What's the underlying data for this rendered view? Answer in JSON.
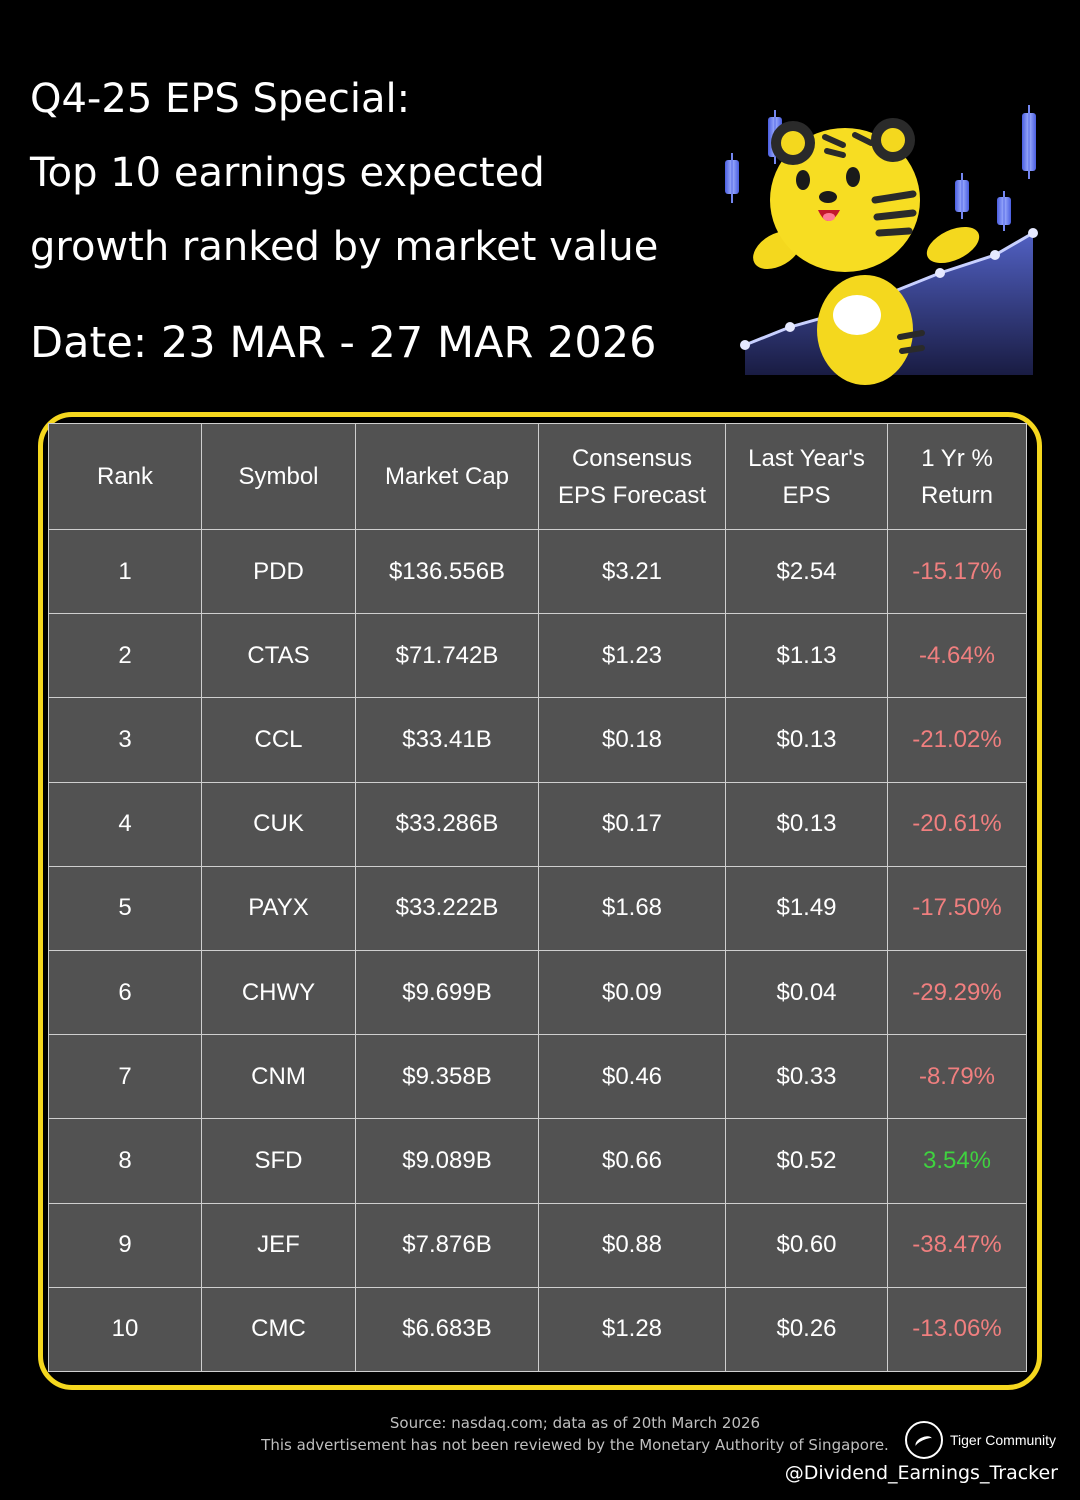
{
  "header": {
    "title_lines": [
      "Q4-25 EPS Special:",
      "Top 10 earnings expected",
      "growth ranked by market value"
    ],
    "date": "Date: 23 MAR - 27 MAR 2026"
  },
  "mascot": {
    "icon": "tiger-mascot-icon"
  },
  "table": {
    "headers": [
      "Rank",
      "Symbol",
      "Market Cap",
      "Consensus EPS Forecast",
      "Last Year's EPS",
      "1 Yr % Return"
    ],
    "rows": [
      {
        "rank": "1",
        "symbol": "PDD",
        "market_cap": "$136.556B",
        "forecast": "$3.21",
        "last_eps": "$2.54",
        "ret": "-15.17%"
      },
      {
        "rank": "2",
        "symbol": "CTAS",
        "market_cap": "$71.742B",
        "forecast": "$1.23",
        "last_eps": "$1.13",
        "ret": "-4.64%"
      },
      {
        "rank": "3",
        "symbol": "CCL",
        "market_cap": "$33.41B",
        "forecast": "$0.18",
        "last_eps": "$0.13",
        "ret": "-21.02%"
      },
      {
        "rank": "4",
        "symbol": "CUK",
        "market_cap": "$33.286B",
        "forecast": "$0.17",
        "last_eps": "$0.13",
        "ret": "-20.61%"
      },
      {
        "rank": "5",
        "symbol": "PAYX",
        "market_cap": "$33.222B",
        "forecast": "$1.68",
        "last_eps": "$1.49",
        "ret": "-17.50%"
      },
      {
        "rank": "6",
        "symbol": "CHWY",
        "market_cap": "$9.699B",
        "forecast": "$0.09",
        "last_eps": "$0.04",
        "ret": "-29.29%"
      },
      {
        "rank": "7",
        "symbol": "CNM",
        "market_cap": "$9.358B",
        "forecast": "$0.46",
        "last_eps": "$0.33",
        "ret": "-8.79%"
      },
      {
        "rank": "8",
        "symbol": "SFD",
        "market_cap": "$9.089B",
        "forecast": "$0.66",
        "last_eps": "$0.52",
        "ret": "3.54%"
      },
      {
        "rank": "9",
        "symbol": "JEF",
        "market_cap": "$7.876B",
        "forecast": "$0.88",
        "last_eps": "$0.60",
        "ret": "-38.47%"
      },
      {
        "rank": "10",
        "symbol": "CMC",
        "market_cap": "$6.683B",
        "forecast": "$1.28",
        "last_eps": "$0.26",
        "ret": "-13.06%"
      }
    ]
  },
  "colors": {
    "frame": "#f5d71e",
    "forecast": "#ff8a1e",
    "negative": "#f07f7f",
    "positive": "#3fd23f",
    "cell": "#525252"
  },
  "footer": {
    "source": "Source: nasdaq.com; data as of 20th March 2026",
    "disclaimer": "This advertisement has not been reviewed by the Monetary Authority of Singapore.",
    "brand": "Tiger Community",
    "handle": "@Dividend_Earnings_Tracker"
  }
}
